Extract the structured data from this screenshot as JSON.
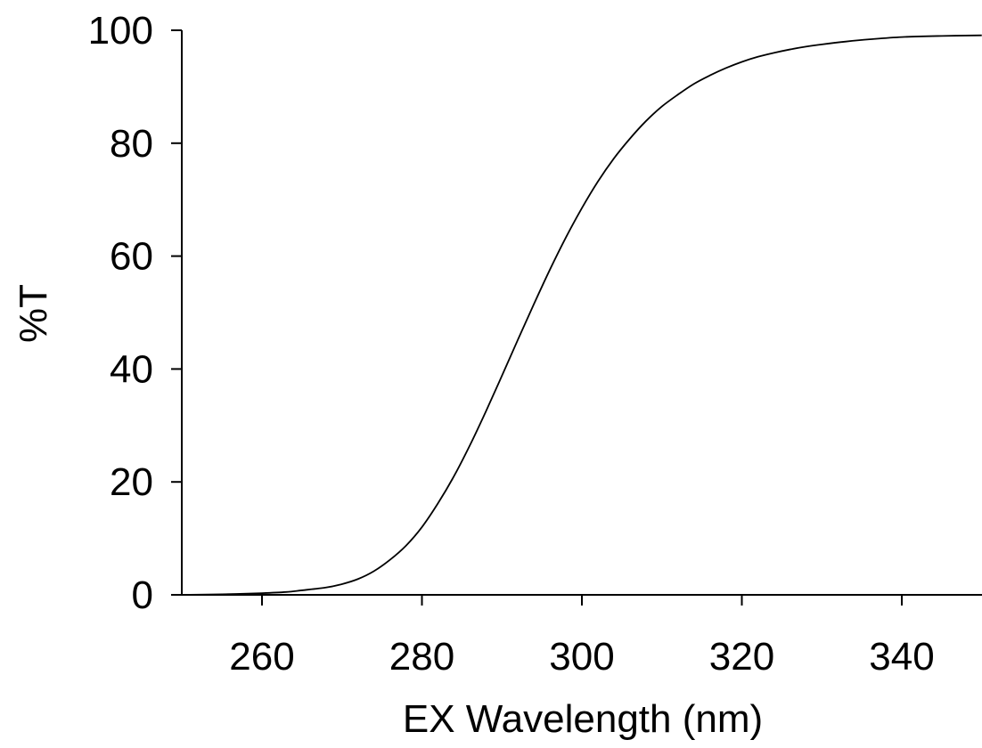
{
  "chart_data": {
    "type": "line",
    "title": "",
    "xlabel": "EX Wavelength (nm)",
    "ylabel": "%T",
    "xlim": [
      250,
      350
    ],
    "ylim": [
      0,
      100
    ],
    "xticks": [
      260,
      280,
      300,
      320,
      340
    ],
    "yticks": [
      0,
      20,
      40,
      60,
      80,
      100
    ],
    "grid": false,
    "series": [
      {
        "x": [
          250,
          255,
          260,
          263,
          265,
          268,
          270,
          272,
          274,
          276,
          278,
          280,
          282,
          284,
          286,
          288,
          290,
          292,
          294,
          296,
          298,
          300,
          302,
          304,
          306,
          308,
          310,
          312,
          314,
          316,
          318,
          320,
          322,
          324,
          326,
          328,
          330,
          333,
          336,
          340,
          345,
          350
        ],
        "y": [
          0,
          0.1,
          0.3,
          0.5,
          0.8,
          1.3,
          1.9,
          2.8,
          4.2,
          6.2,
          8.7,
          12.0,
          16.2,
          21.0,
          26.5,
          32.5,
          38.8,
          45.2,
          51.5,
          57.6,
          63.3,
          68.5,
          73.2,
          77.3,
          80.8,
          83.9,
          86.5,
          88.6,
          90.5,
          92.0,
          93.3,
          94.4,
          95.3,
          96.0,
          96.6,
          97.1,
          97.5,
          98.0,
          98.4,
          98.8,
          99.0,
          99.1
        ]
      }
    ],
    "colors": {
      "line": "#000000",
      "axis": "#000000"
    }
  }
}
